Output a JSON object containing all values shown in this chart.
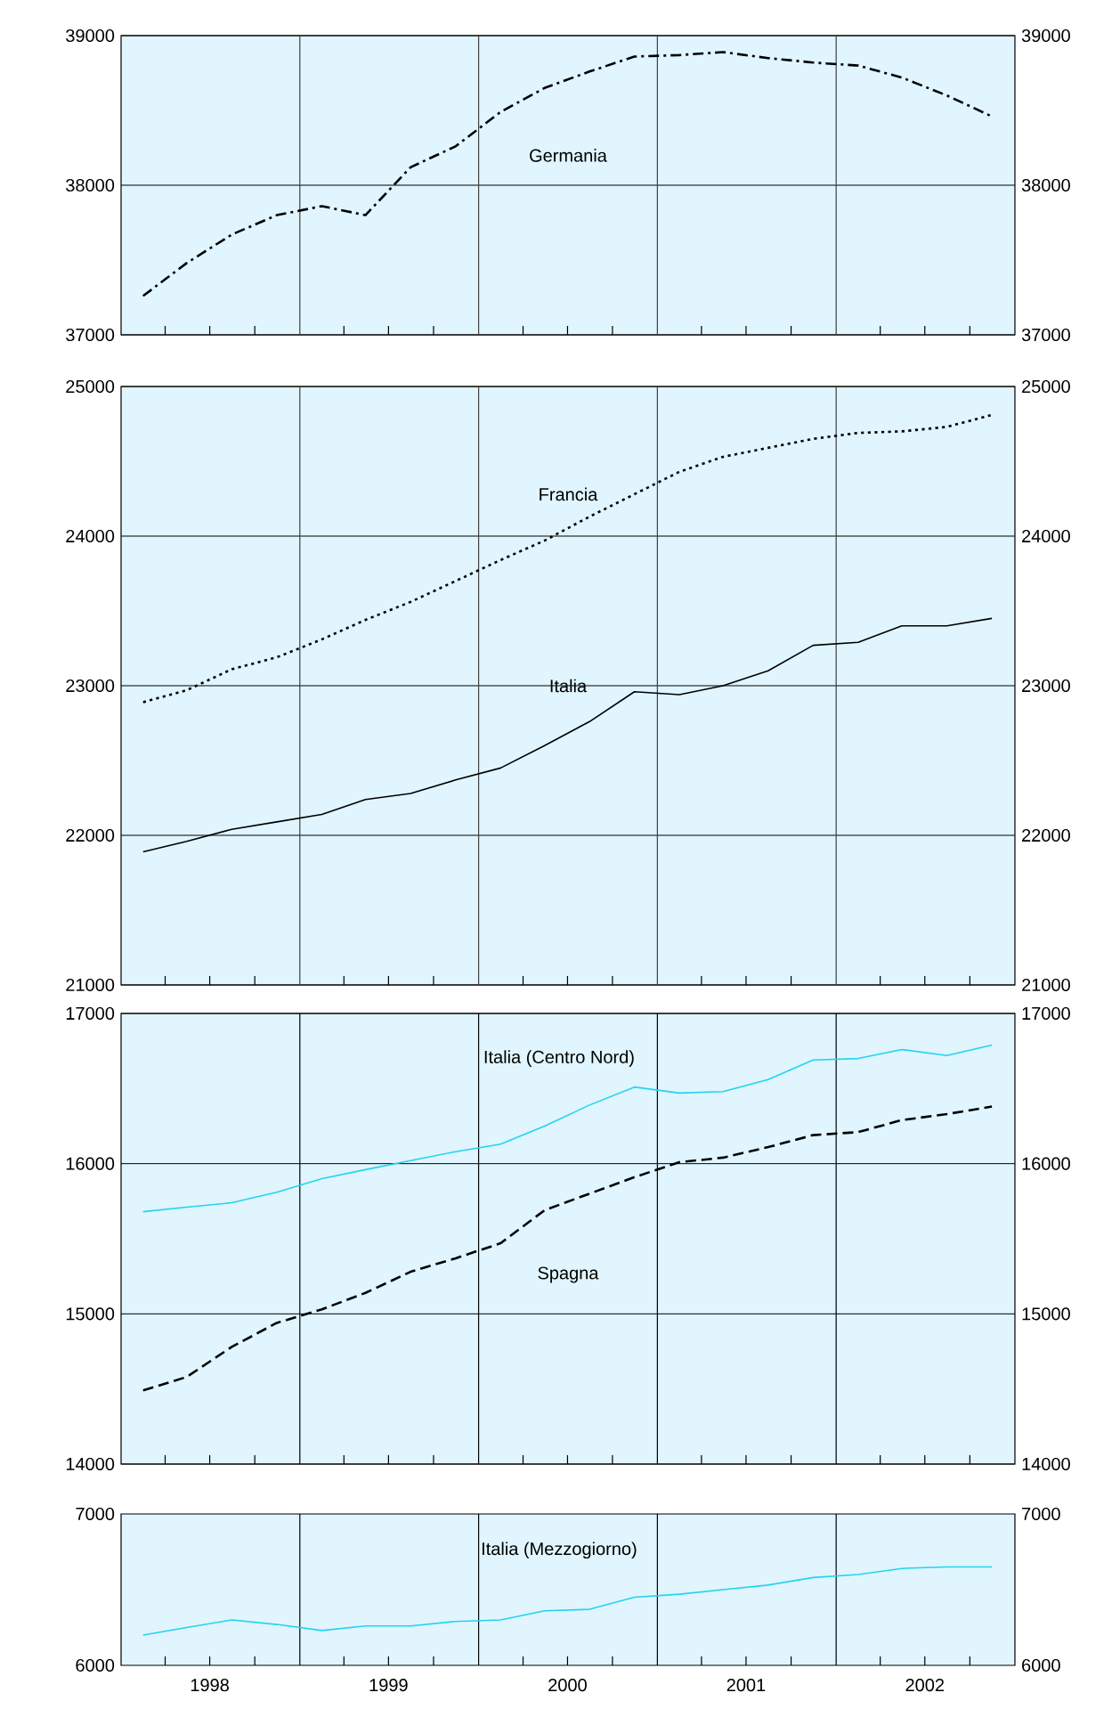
{
  "chart_data": [
    {
      "type": "line",
      "x": [
        "1998-02-15",
        "1998-05-15",
        "1998-08-15",
        "1998-11-15",
        "1999-02-15",
        "1999-05-15",
        "1999-08-15",
        "1999-11-15",
        "2000-02-15",
        "2000-05-15",
        "2000-08-15",
        "2000-11-15",
        "2001-02-15",
        "2001-05-15",
        "2001-08-15",
        "2001-11-15",
        "2002-02-15",
        "2002-05-15",
        "2002-08-15",
        "2002-11-15"
      ],
      "series": [
        {
          "name": "Germania",
          "color": "#000000",
          "line_style": "dashdot",
          "values": [
            37260,
            37480,
            37670,
            37800,
            37860,
            37800,
            38120,
            38260,
            38490,
            38650,
            38760,
            38860,
            38870,
            38890,
            38850,
            38820,
            38800,
            38720,
            38600,
            38460
          ]
        }
      ],
      "xlim": [
        "1998-01-01",
        "2003-01-01"
      ],
      "xticks": [
        {
          "value": "1998-04-01",
          "label": null
        },
        {
          "value": "1998-07-01",
          "label": null
        },
        {
          "value": "1998-10-01",
          "label": null
        },
        {
          "value": "1999-04-01",
          "label": null
        },
        {
          "value": "1999-07-01",
          "label": null
        },
        {
          "value": "1999-10-01",
          "label": null
        },
        {
          "value": "2000-04-01",
          "label": null
        },
        {
          "value": "2000-07-01",
          "label": null
        },
        {
          "value": "2000-10-01",
          "label": null
        },
        {
          "value": "2001-04-01",
          "label": null
        },
        {
          "value": "2001-07-01",
          "label": null
        },
        {
          "value": "2001-10-01",
          "label": null
        },
        {
          "value": "2002-04-01",
          "label": null
        },
        {
          "value": "2002-07-01",
          "label": null
        },
        {
          "value": "2002-10-01",
          "label": null
        }
      ],
      "ylim": [
        37000,
        39000
      ],
      "yticks": [
        37000,
        38000,
        39000
      ],
      "y2lim": [
        37000,
        39000
      ],
      "y2ticks": [
        37000,
        38000,
        39000
      ],
      "grid": "y",
      "tick_labels": "y",
      "ref_lines": [
        {
          "axis": "x",
          "value": "1999-01-01",
          "color": "#404040"
        },
        {
          "axis": "x",
          "value": "2000-01-01",
          "color": "#404040"
        },
        {
          "axis": "x",
          "value": "2001-01-01",
          "color": "#404040"
        },
        {
          "axis": "x",
          "value": "2002-01-01",
          "color": "#404040"
        }
      ]
    },
    {
      "type": "line",
      "x": [
        "1998-02-15",
        "1998-05-15",
        "1998-08-15",
        "1998-11-15",
        "1999-02-15",
        "1999-05-15",
        "1999-08-15",
        "1999-11-15",
        "2000-02-15",
        "2000-05-15",
        "2000-08-15",
        "2000-11-15",
        "2001-02-15",
        "2001-05-15",
        "2001-08-15",
        "2001-11-15",
        "2002-02-15",
        "2002-05-15",
        "2002-08-15",
        "2002-11-15"
      ],
      "series": [
        {
          "name": "Francia",
          "color": "#000000",
          "line_style": "dotted",
          "values": [
            22890,
            22970,
            23110,
            23190,
            23310,
            23440,
            23560,
            23700,
            23840,
            23970,
            24130,
            24280,
            24430,
            24530,
            24590,
            24650,
            24690,
            24700,
            24730,
            24810
          ]
        },
        {
          "name": "Italia",
          "color": "#000000",
          "line_style": "solid",
          "values": [
            21890,
            21960,
            22040,
            22090,
            22140,
            22240,
            22280,
            22370,
            22450,
            22600,
            22760,
            22960,
            22940,
            23000,
            23100,
            23270,
            23290,
            23400,
            23400,
            23450
          ]
        }
      ],
      "xlim": [
        "1998-01-01",
        "2003-01-01"
      ],
      "xticks": [
        {
          "value": "1998-04-01",
          "label": null
        },
        {
          "value": "1998-07-01",
          "label": null
        },
        {
          "value": "1998-10-01",
          "label": null
        },
        {
          "value": "1999-04-01",
          "label": null
        },
        {
          "value": "1999-07-01",
          "label": null
        },
        {
          "value": "1999-10-01",
          "label": null
        },
        {
          "value": "2000-04-01",
          "label": null
        },
        {
          "value": "2000-07-01",
          "label": null
        },
        {
          "value": "2000-10-01",
          "label": null
        },
        {
          "value": "2001-04-01",
          "label": null
        },
        {
          "value": "2001-07-01",
          "label": null
        },
        {
          "value": "2001-10-01",
          "label": null
        },
        {
          "value": "2002-04-01",
          "label": null
        },
        {
          "value": "2002-07-01",
          "label": null
        },
        {
          "value": "2002-10-01",
          "label": null
        }
      ],
      "ylim": [
        21000,
        25000
      ],
      "yticks": [
        21000,
        22000,
        23000,
        24000,
        25000
      ],
      "y2lim": [
        21000,
        25000
      ],
      "y2ticks": [
        21000,
        22000,
        23000,
        24000,
        25000
      ],
      "grid": "y",
      "tick_labels": "y",
      "ref_lines": [
        {
          "axis": "x",
          "value": "1999-01-01",
          "color": "#404040"
        },
        {
          "axis": "x",
          "value": "2000-01-01",
          "color": "#404040"
        },
        {
          "axis": "x",
          "value": "2001-01-01",
          "color": "#404040"
        },
        {
          "axis": "x",
          "value": "2002-01-01",
          "color": "#404040"
        }
      ]
    },
    {
      "type": "line",
      "x": [
        "1998-02-15",
        "1998-05-15",
        "1998-08-15",
        "1998-11-15",
        "1999-02-15",
        "1999-05-15",
        "1999-08-15",
        "1999-11-15",
        "2000-02-15",
        "2000-05-15",
        "2000-08-15",
        "2000-11-15",
        "2001-02-15",
        "2001-05-15",
        "2001-08-15",
        "2001-11-15",
        "2002-02-15",
        "2002-05-15",
        "2002-08-15",
        "2002-11-15"
      ],
      "series": [
        {
          "name": "Italia (Centro Nord)",
          "color": "#22d3f2",
          "line_style": "solid",
          "values": [
            15680,
            15710,
            15740,
            15810,
            15900,
            15960,
            16020,
            16080,
            16130,
            16250,
            16390,
            16510,
            16470,
            16480,
            16560,
            16690,
            16700,
            16760,
            16720,
            16790
          ]
        },
        {
          "name": "Spagna",
          "color": "#000000",
          "line_style": "dashed",
          "values": [
            14490,
            14580,
            14780,
            14940,
            15030,
            15140,
            15280,
            15370,
            15470,
            15690,
            15800,
            15910,
            16010,
            16040,
            16110,
            16190,
            16210,
            16290,
            16330,
            16380
          ]
        }
      ],
      "xlim": [
        "1998-01-01",
        "2003-01-01"
      ],
      "xticks": [
        {
          "value": "1998-04-01",
          "label": null
        },
        {
          "value": "1998-07-01",
          "label": null
        },
        {
          "value": "1998-10-01",
          "label": null
        },
        {
          "value": "1999-04-01",
          "label": null
        },
        {
          "value": "1999-07-01",
          "label": null
        },
        {
          "value": "1999-10-01",
          "label": null
        },
        {
          "value": "2000-04-01",
          "label": null
        },
        {
          "value": "2000-07-01",
          "label": null
        },
        {
          "value": "2000-10-01",
          "label": null
        },
        {
          "value": "2001-04-01",
          "label": null
        },
        {
          "value": "2001-07-01",
          "label": null
        },
        {
          "value": "2001-10-01",
          "label": null
        },
        {
          "value": "2002-04-01",
          "label": null
        },
        {
          "value": "2002-07-01",
          "label": null
        },
        {
          "value": "2002-10-01",
          "label": null
        }
      ],
      "ylim": [
        14000,
        17000
      ],
      "yticks": [
        14000,
        15000,
        16000,
        17000
      ],
      "y2lim": [
        14000,
        17000
      ],
      "y2ticks": [
        14000,
        15000,
        16000,
        17000
      ],
      "grid": "y",
      "tick_labels": "y",
      "ref_lines": [
        {
          "axis": "x",
          "value": "1999-01-01",
          "color": "#000000"
        },
        {
          "axis": "x",
          "value": "2000-01-01",
          "color": "#000000"
        },
        {
          "axis": "x",
          "value": "2001-01-01",
          "color": "#000000"
        },
        {
          "axis": "x",
          "value": "2002-01-01",
          "color": "#000000"
        }
      ]
    },
    {
      "type": "line",
      "x": [
        "1998-02-15",
        "1998-05-15",
        "1998-08-15",
        "1998-11-15",
        "1999-02-15",
        "1999-05-15",
        "1999-08-15",
        "1999-11-15",
        "2000-02-15",
        "2000-05-15",
        "2000-08-15",
        "2000-11-15",
        "2001-02-15",
        "2001-05-15",
        "2001-08-15",
        "2001-11-15",
        "2002-02-15",
        "2002-05-15",
        "2002-08-15",
        "2002-11-15"
      ],
      "series": [
        {
          "name": "Italia (Mezzogiorno)",
          "color": "#22d3f2",
          "line_style": "solid",
          "values": [
            6200,
            6250,
            6300,
            6270,
            6230,
            6260,
            6260,
            6290,
            6300,
            6360,
            6370,
            6450,
            6470,
            6500,
            6530,
            6580,
            6600,
            6640,
            6650,
            6650
          ]
        }
      ],
      "xlim": [
        "1998-01-01",
        "2003-01-01"
      ],
      "xticks": [
        {
          "value": "1998-04-01",
          "label": null
        },
        {
          "value": "1998-07-01",
          "label": "1998"
        },
        {
          "value": "1998-10-01",
          "label": null
        },
        {
          "value": "1999-04-01",
          "label": null
        },
        {
          "value": "1999-07-01",
          "label": "1999"
        },
        {
          "value": "1999-10-01",
          "label": null
        },
        {
          "value": "2000-04-01",
          "label": null
        },
        {
          "value": "2000-07-01",
          "label": "2000"
        },
        {
          "value": "2000-10-01",
          "label": null
        },
        {
          "value": "2001-04-01",
          "label": null
        },
        {
          "value": "2001-07-01",
          "label": "2001"
        },
        {
          "value": "2001-10-01",
          "label": null
        },
        {
          "value": "2002-04-01",
          "label": null
        },
        {
          "value": "2002-07-01",
          "label": "2002"
        },
        {
          "value": "2002-10-01",
          "label": null
        }
      ],
      "ylim": [
        6000,
        7000
      ],
      "yticks": [
        6000,
        7000
      ],
      "y2lim": [
        6000,
        7000
      ],
      "y2ticks": [
        6000,
        7000
      ],
      "ref_lines": [
        {
          "axis": "x",
          "value": "1999-01-01",
          "color": "#000000"
        },
        {
          "axis": "x",
          "value": "2000-01-01",
          "color": "#000000"
        },
        {
          "axis": "x",
          "value": "2001-01-01",
          "color": "#000000"
        },
        {
          "axis": "x",
          "value": "2002-01-01",
          "color": "#000000"
        }
      ]
    }
  ]
}
